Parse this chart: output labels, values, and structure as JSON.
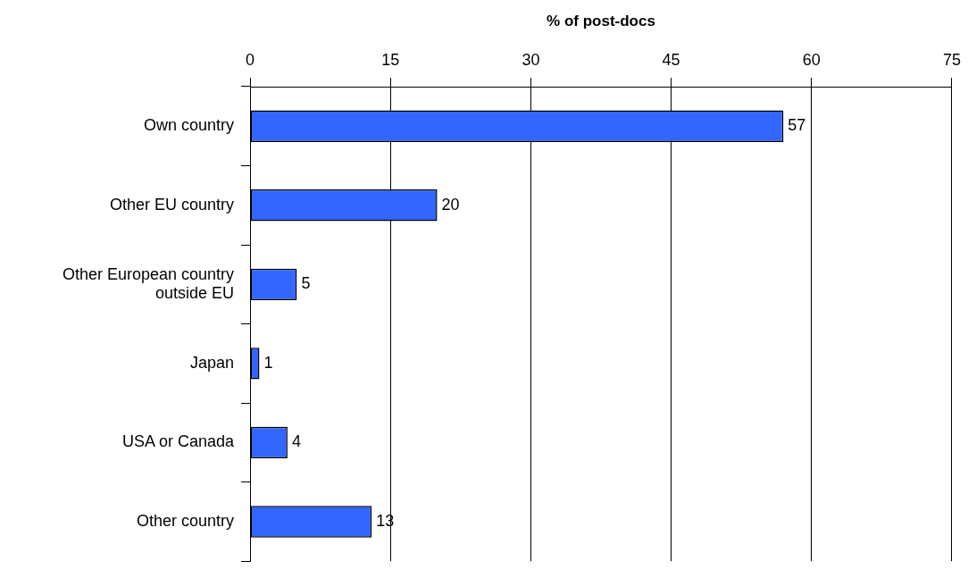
{
  "chart_data": {
    "type": "bar",
    "orientation": "horizontal",
    "xlabel": "% of post-docs",
    "categories": [
      "Own country",
      "Other EU country",
      "Other European country outside EU",
      "Japan",
      "USA or Canada",
      "Other country"
    ],
    "values": [
      57,
      20,
      5,
      1,
      4,
      13
    ],
    "color": "#3366ff",
    "xlim": [
      0,
      75
    ],
    "xticks": [
      0,
      15,
      30,
      45,
      60,
      75
    ],
    "grid": "x",
    "data_labels": true
  }
}
